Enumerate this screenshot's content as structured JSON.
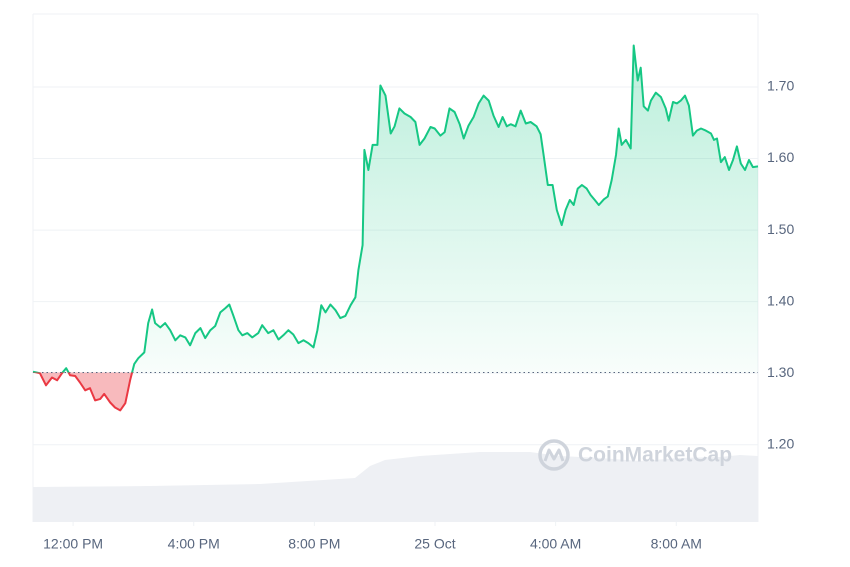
{
  "chart_data": {
    "type": "line",
    "watermark": "CoinMarketCap",
    "baseline": 1.301,
    "up_color": "#16c784",
    "down_color": "#ea3943",
    "grid": true,
    "xlim": [
      10.67,
      34.71
    ],
    "xticks": [
      {
        "value": 12,
        "label": "12:00 PM"
      },
      {
        "value": 16,
        "label": "4:00 PM"
      },
      {
        "value": 20,
        "label": "8:00 PM"
      },
      {
        "value": 24,
        "label": "25 Oct"
      },
      {
        "value": 28,
        "label": "4:00 AM"
      },
      {
        "value": 32,
        "label": "8:00 AM"
      }
    ],
    "ylim": [
      1.092,
      1.802
    ],
    "yticks": [
      {
        "value": 1.2,
        "label": "1.20"
      },
      {
        "value": 1.3,
        "label": "1.30"
      },
      {
        "value": 1.4,
        "label": "1.40"
      },
      {
        "value": 1.5,
        "label": "1.50"
      },
      {
        "value": 1.6,
        "label": "1.60"
      },
      {
        "value": 1.7,
        "label": "1.70"
      }
    ],
    "x": [
      10.67,
      10.9,
      11.1,
      11.3,
      11.47,
      11.63,
      11.77,
      11.9,
      12.07,
      12.23,
      12.4,
      12.56,
      12.73,
      12.9,
      13.03,
      13.23,
      13.39,
      13.56,
      13.73,
      13.89,
      14.03,
      14.16,
      14.36,
      14.49,
      14.62,
      14.72,
      14.89,
      15.05,
      15.22,
      15.39,
      15.55,
      15.72,
      15.88,
      16.05,
      16.22,
      16.38,
      16.55,
      16.71,
      16.88,
      17.05,
      17.18,
      17.31,
      17.48,
      17.61,
      17.78,
      17.94,
      18.14,
      18.27,
      18.47,
      18.64,
      18.81,
      18.97,
      19.14,
      19.3,
      19.47,
      19.64,
      19.8,
      19.97,
      20.1,
      20.23,
      20.37,
      20.53,
      20.7,
      20.86,
      21.03,
      21.2,
      21.36,
      21.46,
      21.6,
      21.66,
      21.79,
      21.93,
      22.09,
      22.19,
      22.36,
      22.53,
      22.66,
      22.82,
      22.99,
      23.19,
      23.35,
      23.49,
      23.65,
      23.85,
      23.99,
      24.18,
      24.32,
      24.48,
      24.65,
      24.82,
      24.95,
      25.11,
      25.28,
      25.45,
      25.61,
      25.78,
      25.94,
      26.11,
      26.24,
      26.38,
      26.51,
      26.67,
      26.84,
      27.01,
      27.17,
      27.37,
      27.5,
      27.6,
      27.74,
      27.9,
      28.04,
      28.2,
      28.33,
      28.47,
      28.6,
      28.73,
      28.87,
      29.03,
      29.16,
      29.3,
      29.43,
      29.6,
      29.73,
      29.86,
      30.0,
      30.09,
      30.19,
      30.33,
      30.49,
      30.59,
      30.72,
      30.82,
      30.92,
      31.06,
      31.16,
      31.32,
      31.49,
      31.65,
      31.75,
      31.89,
      32.02,
      32.15,
      32.29,
      32.42,
      32.55,
      32.68,
      32.82,
      32.98,
      33.15,
      33.25,
      33.35,
      33.48,
      33.61,
      33.75,
      33.88,
      34.01,
      34.14,
      34.28,
      34.41,
      34.54,
      34.71
    ],
    "values": [
      1.302,
      1.3,
      1.283,
      1.294,
      1.29,
      1.3,
      1.307,
      1.297,
      1.296,
      1.287,
      1.276,
      1.279,
      1.262,
      1.264,
      1.271,
      1.259,
      1.252,
      1.248,
      1.258,
      1.29,
      1.313,
      1.321,
      1.329,
      1.37,
      1.389,
      1.37,
      1.364,
      1.37,
      1.36,
      1.346,
      1.353,
      1.35,
      1.339,
      1.356,
      1.363,
      1.349,
      1.36,
      1.366,
      1.385,
      1.391,
      1.396,
      1.381,
      1.36,
      1.353,
      1.356,
      1.35,
      1.356,
      1.367,
      1.356,
      1.36,
      1.347,
      1.353,
      1.36,
      1.354,
      1.342,
      1.346,
      1.342,
      1.336,
      1.36,
      1.395,
      1.385,
      1.396,
      1.388,
      1.377,
      1.38,
      1.395,
      1.406,
      1.444,
      1.479,
      1.612,
      1.584,
      1.619,
      1.619,
      1.702,
      1.688,
      1.635,
      1.645,
      1.67,
      1.663,
      1.658,
      1.651,
      1.619,
      1.628,
      1.644,
      1.642,
      1.632,
      1.637,
      1.67,
      1.665,
      1.648,
      1.628,
      1.646,
      1.658,
      1.677,
      1.688,
      1.681,
      1.66,
      1.644,
      1.658,
      1.645,
      1.648,
      1.645,
      1.667,
      1.649,
      1.651,
      1.645,
      1.634,
      1.605,
      1.563,
      1.563,
      1.528,
      1.507,
      1.528,
      1.542,
      1.535,
      1.558,
      1.563,
      1.558,
      1.549,
      1.542,
      1.535,
      1.543,
      1.547,
      1.57,
      1.605,
      1.642,
      1.619,
      1.626,
      1.614,
      1.758,
      1.709,
      1.727,
      1.673,
      1.667,
      1.681,
      1.692,
      1.686,
      1.67,
      1.653,
      1.679,
      1.677,
      1.681,
      1.688,
      1.674,
      1.632,
      1.639,
      1.642,
      1.639,
      1.635,
      1.626,
      1.628,
      1.595,
      1.602,
      1.584,
      1.598,
      1.617,
      1.593,
      1.584,
      1.598,
      1.588,
      1.589
    ]
  }
}
